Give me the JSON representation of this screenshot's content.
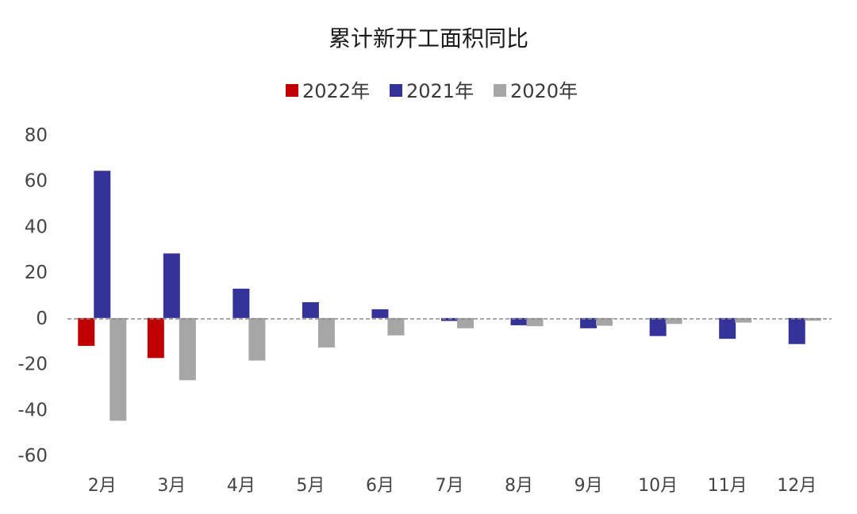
{
  "chart_data": {
    "type": "bar",
    "title": "累计新开工面积同比",
    "xlabel": "",
    "ylabel": "",
    "ylim": [
      -60,
      80
    ],
    "yticks": [
      80,
      60,
      40,
      20,
      0,
      -20,
      -40,
      -60
    ],
    "ytick_labels": [
      "80",
      "60",
      "40",
      "20",
      "0",
      "-20",
      "-40",
      "-60"
    ],
    "categories": [
      "2月",
      "3月",
      "4月",
      "5月",
      "6月",
      "7月",
      "8月",
      "9月",
      "10月",
      "11月",
      "12月"
    ],
    "legend_position": "top-center",
    "zero_line": "dashed",
    "grid": false,
    "series": [
      {
        "name": "2022年",
        "color": "#c00000",
        "values": [
          -12.2,
          -17.5,
          null,
          null,
          null,
          null,
          null,
          null,
          null,
          null,
          null
        ]
      },
      {
        "name": "2021年",
        "color": "#333399",
        "values": [
          64.3,
          28.2,
          12.8,
          6.9,
          3.8,
          -1.3,
          -3.2,
          -4.5,
          -7.9,
          -9.1,
          -11.4
        ]
      },
      {
        "name": "2020年",
        "color": "#a6a6a6",
        "values": [
          -44.9,
          -27.2,
          -18.6,
          -12.9,
          -7.6,
          -4.5,
          -3.6,
          -3.4,
          -2.6,
          -2.0,
          -1.2
        ]
      }
    ]
  }
}
